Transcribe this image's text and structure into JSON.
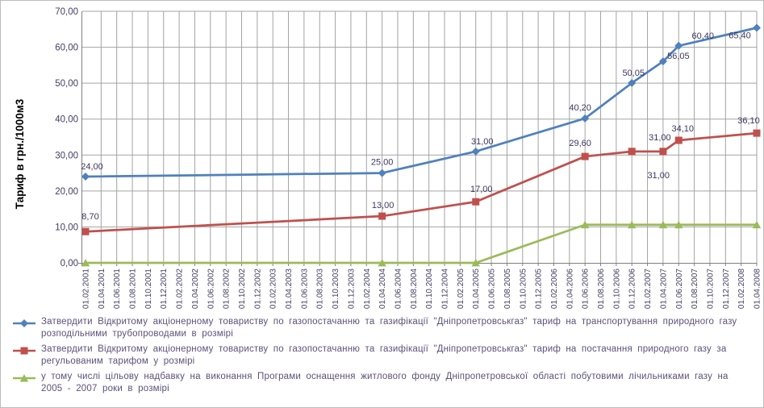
{
  "chart_data": {
    "type": "line",
    "title": "",
    "xlabel": "",
    "ylabel": "Тариф в грн./1000м3",
    "ylim": [
      0,
      70
    ],
    "ytick_step": 10,
    "ytick_labels": [
      "0,00",
      "10,00",
      "20,00",
      "30,00",
      "40,00",
      "50,00",
      "60,00",
      "70,00"
    ],
    "grid": true,
    "legend_position": "bottom",
    "categories": [
      "01.02.2001",
      "01.04.2001",
      "01.06.2001",
      "01.08.2001",
      "01.10.2001",
      "01.12.2001",
      "01.02.2002",
      "01.04.2002",
      "01.06.2002",
      "01.08.2002",
      "01.10.2002",
      "01.12.2002",
      "01.02.2003",
      "01.04.2003",
      "01.06.2003",
      "01.08.2003",
      "01.10.2003",
      "01.12.2003",
      "01.02.2004",
      "01.04.2004",
      "01.06.2004",
      "01.08.2004",
      "01.10.2004",
      "01.12.2004",
      "01.02.2005",
      "01.04.2005",
      "01.06.2005",
      "01.08.2005",
      "01.10.2005",
      "01.12.2005",
      "01.02.2006",
      "01.04.2006",
      "01.06.2006",
      "01.08.2006",
      "01.10.2006",
      "01.12.2006",
      "01.02.2007",
      "01.04.2007",
      "01.06.2007",
      "01.08.2007",
      "01.10.2007",
      "01.12.2007",
      "01.02.2008",
      "01.04.2008"
    ],
    "series": [
      {
        "name": "Затвердити Відкритому акціонерному товариству по газопостачанню та газифікації \"Дніпропетровськгаз\" тариф на транспортування природного газу розподільними трубопроводами в розмірі",
        "color": "#4F81BD",
        "marker": "diamond",
        "points": [
          {
            "category": "01.02.2001",
            "value": 24.0,
            "label": "24,00",
            "label_dx": 8,
            "label_dy": -9
          },
          {
            "category": "01.04.2004",
            "value": 25.0,
            "label": "25,00",
            "label_dx": 0,
            "label_dy": -10
          },
          {
            "category": "01.04.2005",
            "value": 31.0,
            "label": "31,00",
            "label_dx": 8,
            "label_dy": -9
          },
          {
            "category": "01.06.2006",
            "value": 40.2,
            "label": "40,20",
            "label_dx": -6,
            "label_dy": -10
          },
          {
            "category": "01.12.2006",
            "value": 50.05,
            "label": "50,05",
            "label_dx": 2,
            "label_dy": -9
          },
          {
            "category": "01.04.2007",
            "value": 56.05,
            "label": "56,05",
            "label_dx": 19,
            "label_dy": -3
          },
          {
            "category": "01.06.2007",
            "value": 60.4,
            "label": "60,40",
            "label_dx": 30,
            "label_dy": -9
          },
          {
            "category": "01.04.2008",
            "value": 65.4,
            "label": "65,40",
            "label_dx": -21,
            "label_dy": 13
          }
        ]
      },
      {
        "name": "Затвердити Відкритому акціонерному товариству по газопостачанню та газифікації \"Дніпропетровськгаз\" тариф на постачання природного газу за регульованим тарифом у розмірі",
        "color": "#C0504D",
        "marker": "square",
        "points": [
          {
            "category": "01.02.2001",
            "value": 8.7,
            "label": "8,70",
            "label_dx": 6,
            "label_dy": -15
          },
          {
            "category": "01.04.2004",
            "value": 13.0,
            "label": "13,00",
            "label_dx": 1,
            "label_dy": -10
          },
          {
            "category": "01.04.2005",
            "value": 17.0,
            "label": "17,00",
            "label_dx": 7,
            "label_dy": -12
          },
          {
            "category": "01.06.2006",
            "value": 29.6,
            "label": "29,60",
            "label_dx": -6,
            "label_dy": -13
          },
          {
            "category": "01.12.2006",
            "value": 31.0,
            "label": "31,00",
            "label_dx": 33,
            "label_dy": 33
          },
          {
            "category": "01.04.2007",
            "value": 31.0,
            "label": "31,00",
            "label_dx": -4,
            "label_dy": -14
          },
          {
            "category": "01.06.2007",
            "value": 34.1,
            "label": "34,10",
            "label_dx": 5,
            "label_dy": -11
          },
          {
            "category": "01.04.2008",
            "value": 36.1,
            "label": "36,10",
            "label_dx": -10,
            "label_dy": -12
          }
        ]
      },
      {
        "name": "у тому числі цільову надбавку на виконання Програми оснащення житлового фонду Дніпропетровської області побутовими лічильниками газу на 2005 - 2007 роки в розмірі",
        "color": "#9BBB59",
        "marker": "triangle",
        "points": [
          {
            "category": "01.02.2001",
            "value": 0.0,
            "label": "",
            "label_dx": 0,
            "label_dy": 0
          },
          {
            "category": "01.04.2004",
            "value": 0.0,
            "label": "",
            "label_dx": 0,
            "label_dy": 0
          },
          {
            "category": "01.04.2005",
            "value": 0.0,
            "label": "",
            "label_dx": 0,
            "label_dy": 0
          },
          {
            "category": "01.06.2006",
            "value": 10.6,
            "label": "",
            "label_dx": 0,
            "label_dy": 0
          },
          {
            "category": "01.12.2006",
            "value": 10.6,
            "label": "",
            "label_dx": 0,
            "label_dy": 0
          },
          {
            "category": "01.04.2007",
            "value": 10.6,
            "label": "",
            "label_dx": 0,
            "label_dy": 0
          },
          {
            "category": "01.06.2007",
            "value": 10.6,
            "label": "",
            "label_dx": 0,
            "label_dy": 0
          },
          {
            "category": "01.04.2008",
            "value": 10.6,
            "label": "",
            "label_dx": 0,
            "label_dy": 0
          }
        ]
      }
    ]
  },
  "colors": {
    "background": "#ffffff",
    "border": "#bdbdbd",
    "grid": "#a3a3a3",
    "axis": "#7f7f7f",
    "tick_text": "#433d62",
    "data_label_text": "#3d3760",
    "legend_text": "#5d5178",
    "axis_title_text": "#000000"
  }
}
